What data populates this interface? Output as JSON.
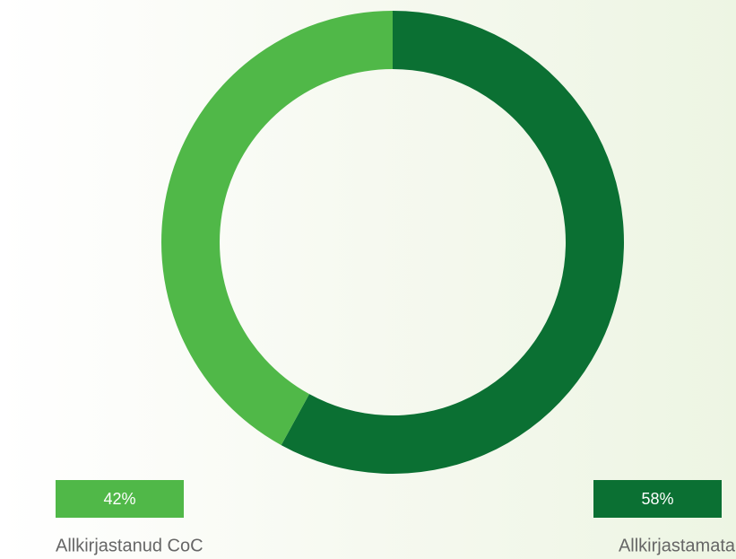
{
  "chart_data": {
    "type": "donut",
    "categories": [
      "Allkirjastanud CoC",
      "Allkirjastamata"
    ],
    "values": [
      42,
      58
    ],
    "value_labels": [
      "42%",
      "58%"
    ],
    "colors": [
      "#50b848",
      "#0b7033"
    ]
  }
}
